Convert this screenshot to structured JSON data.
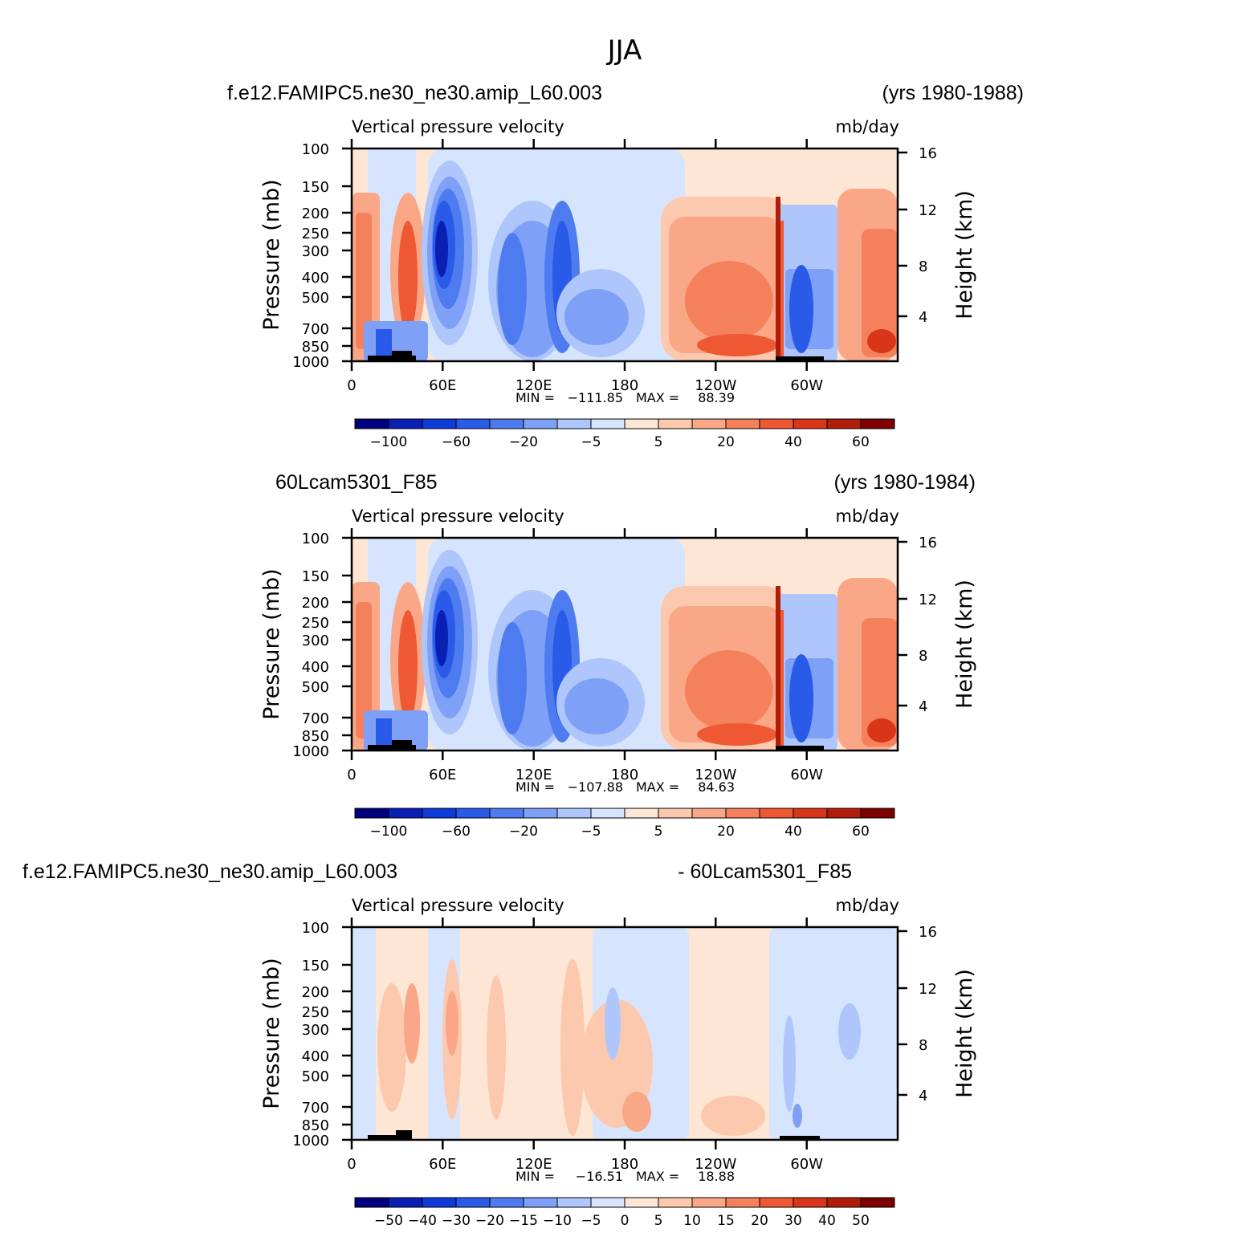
{
  "figure_title": "JJA",
  "chart_data": [
    {
      "type": "heatmap",
      "case_name": "f.e12.FAMIPC5.ne30_ne30.amip_L60.003",
      "years": "(yrs 1980-1988)",
      "title": "Vertical pressure velocity",
      "units": "mb/day",
      "ylabel": "Pressure (mb)",
      "y2label": "Height (km)",
      "x_ticks": [
        "0",
        "60E",
        "120E",
        "180",
        "120W",
        "60W"
      ],
      "y_ticks": [
        "100",
        "150",
        "200",
        "250",
        "300",
        "400",
        "500",
        "700",
        "850",
        "1000"
      ],
      "y2_ticks": [
        "16",
        "12",
        "8",
        "4"
      ],
      "stats": {
        "min_label": "MIN =",
        "min": "−111.85",
        "max_label": "MAX =",
        "max": "88.39"
      },
      "colorbar": {
        "tick_labels": [
          "−100",
          "−60",
          "−20",
          "−5",
          "5",
          "20",
          "40",
          "60"
        ],
        "colors": [
          "#00007f",
          "#0a1fb4",
          "#0d3bd9",
          "#2a5ae8",
          "#4e7cf0",
          "#7ea1f7",
          "#aec6fb",
          "#d6e5fd",
          "#fde6d4",
          "#fcc8ae",
          "#f9a787",
          "#f5805c",
          "#ee5833",
          "#d93518",
          "#b21d0a",
          "#7f0000"
        ]
      }
    },
    {
      "type": "heatmap",
      "case_name": "60Lcam5301_F85",
      "years": "(yrs 1980-1984)",
      "title": "Vertical pressure velocity",
      "units": "mb/day",
      "ylabel": "Pressure (mb)",
      "y2label": "Height (km)",
      "x_ticks": [
        "0",
        "60E",
        "120E",
        "180",
        "120W",
        "60W"
      ],
      "y_ticks": [
        "100",
        "150",
        "200",
        "250",
        "300",
        "400",
        "500",
        "700",
        "850",
        "1000"
      ],
      "y2_ticks": [
        "16",
        "12",
        "8",
        "4"
      ],
      "stats": {
        "min_label": "MIN =",
        "min": "−107.88",
        "max_label": "MAX =",
        "max": "84.63"
      },
      "colorbar": {
        "tick_labels": [
          "−100",
          "−60",
          "−20",
          "−5",
          "5",
          "20",
          "40",
          "60"
        ],
        "colors": [
          "#00007f",
          "#0a1fb4",
          "#0d3bd9",
          "#2a5ae8",
          "#4e7cf0",
          "#7ea1f7",
          "#aec6fb",
          "#d6e5fd",
          "#fde6d4",
          "#fcc8ae",
          "#f9a787",
          "#f5805c",
          "#ee5833",
          "#d93518",
          "#b21d0a",
          "#7f0000"
        ]
      }
    },
    {
      "type": "heatmap",
      "case_name": "f.e12.FAMIPC5.ne30_ne30.amip_L60.003",
      "years": "- 60Lcam5301_F85",
      "title": "Vertical pressure velocity",
      "units": "mb/day",
      "ylabel": "Pressure (mb)",
      "y2label": "Height (km)",
      "x_ticks": [
        "0",
        "60E",
        "120E",
        "180",
        "120W",
        "60W"
      ],
      "y_ticks": [
        "100",
        "150",
        "200",
        "250",
        "300",
        "400",
        "500",
        "700",
        "850",
        "1000"
      ],
      "y2_ticks": [
        "16",
        "12",
        "8",
        "4"
      ],
      "stats": {
        "min_label": "MIN =",
        "min": "−16.51",
        "max_label": "MAX =",
        "max": "18.88"
      },
      "colorbar": {
        "tick_labels": [
          "−50",
          "−40",
          "−30",
          "−20",
          "−15",
          "−10",
          "−5",
          "0",
          "5",
          "10",
          "15",
          "20",
          "30",
          "40",
          "50"
        ],
        "colors": [
          "#00007f",
          "#0a1fb4",
          "#0d3bd9",
          "#2a5ae8",
          "#4e7cf0",
          "#7ea1f7",
          "#aec6fb",
          "#d6e5fd",
          "#fde6d4",
          "#fcc8ae",
          "#f9a787",
          "#f5805c",
          "#ee5833",
          "#d93518",
          "#b21d0a",
          "#7f0000"
        ]
      }
    }
  ]
}
